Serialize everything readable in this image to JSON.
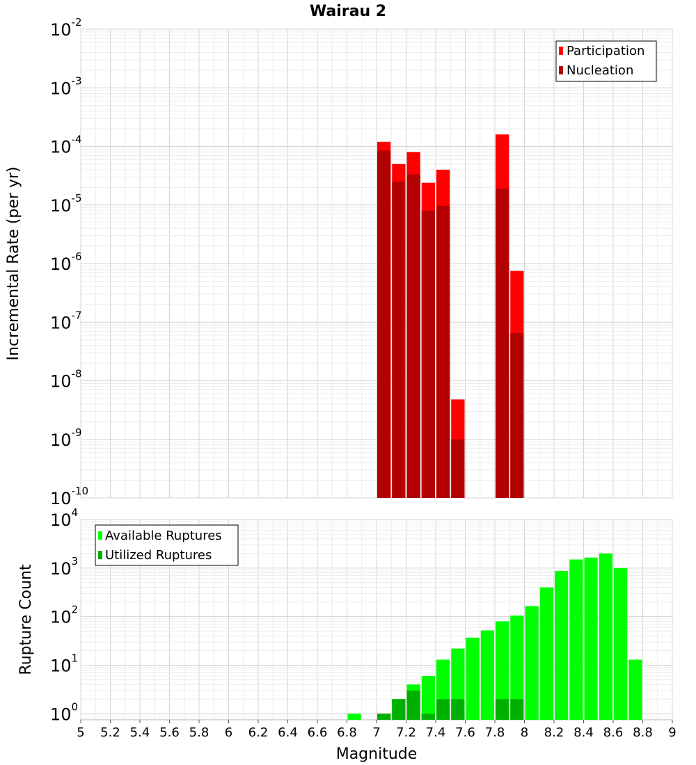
{
  "chart_data": [
    {
      "type": "bar",
      "title": "Wairau 2",
      "ylabel": "Incremental Rate (per yr)",
      "xlabel": "",
      "yscale": "log",
      "ylim": [
        1e-10,
        0.01
      ],
      "xlim": [
        5,
        9
      ],
      "bin_width": 0.1,
      "grid": true,
      "legend_position": "top-right",
      "series": [
        {
          "name": "Participation",
          "color": "#ff0000",
          "x": [
            7.0,
            7.1,
            7.2,
            7.3,
            7.4,
            7.5,
            7.8,
            7.9
          ],
          "values": [
            0.00012,
            5e-05,
            8e-05,
            2.4e-05,
            4e-05,
            4.8e-09,
            0.00016,
            7.5e-07
          ]
        },
        {
          "name": "Nucleation",
          "color": "#b30000",
          "x": [
            7.0,
            7.1,
            7.2,
            7.3,
            7.4,
            7.5,
            7.8,
            7.9
          ],
          "values": [
            8.5e-05,
            2.5e-05,
            3.3e-05,
            8e-06,
            9.7e-06,
            1e-09,
            1.9e-05,
            6.5e-08
          ]
        }
      ],
      "yticks": [
        {
          "base": "10",
          "exp": "-10"
        },
        {
          "base": "10",
          "exp": "-9"
        },
        {
          "base": "10",
          "exp": "-8"
        },
        {
          "base": "10",
          "exp": "-7"
        },
        {
          "base": "10",
          "exp": "-6"
        },
        {
          "base": "10",
          "exp": "-5"
        },
        {
          "base": "10",
          "exp": "-4"
        },
        {
          "base": "10",
          "exp": "-3"
        },
        {
          "base": "10",
          "exp": "-2"
        }
      ]
    },
    {
      "type": "bar",
      "title": "",
      "ylabel": "Rupture Count",
      "xlabel": "Magnitude",
      "yscale": "log",
      "ylim": [
        0.75,
        10000
      ],
      "xlim": [
        5,
        9
      ],
      "bin_width": 0.1,
      "grid": true,
      "legend_position": "top-left",
      "series": [
        {
          "name": "Available Ruptures",
          "color": "#00ff00",
          "x": [
            6.8,
            7.0,
            7.1,
            7.2,
            7.3,
            7.4,
            7.5,
            7.6,
            7.7,
            7.8,
            7.9,
            8.0,
            8.1,
            8.2,
            8.3,
            8.4,
            8.5,
            8.6,
            8.7
          ],
          "values": [
            1,
            1,
            2,
            4,
            6,
            13,
            22,
            37,
            52,
            80,
            105,
            165,
            400,
            870,
            1500,
            1650,
            2000,
            1000,
            13
          ]
        },
        {
          "name": "Utilized Ruptures",
          "color": "#00b000",
          "x": [
            7.0,
            7.1,
            7.2,
            7.3,
            7.4,
            7.5,
            7.8,
            7.9
          ],
          "values": [
            1,
            2,
            3,
            1,
            2,
            2,
            2,
            2
          ]
        }
      ],
      "yticks": [
        {
          "base": "10",
          "exp": "0"
        },
        {
          "base": "10",
          "exp": "1"
        },
        {
          "base": "10",
          "exp": "2"
        },
        {
          "base": "10",
          "exp": "3"
        },
        {
          "base": "10",
          "exp": "4"
        }
      ],
      "xticks": [
        "5",
        "5.2",
        "5.4",
        "5.6",
        "5.8",
        "6",
        "6.2",
        "6.4",
        "6.6",
        "6.8",
        "7",
        "7.2",
        "7.4",
        "7.6",
        "7.8",
        "8",
        "8.2",
        "8.4",
        "8.6",
        "8.8",
        "9"
      ]
    }
  ]
}
